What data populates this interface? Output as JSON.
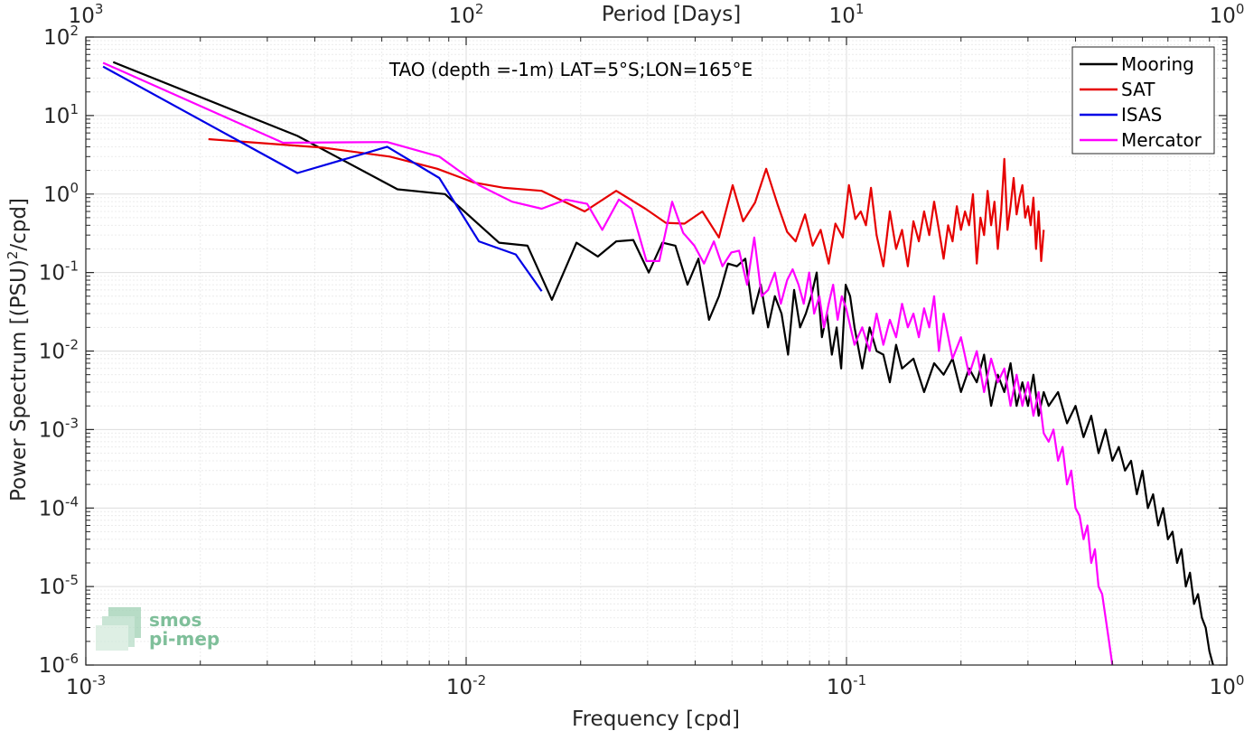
{
  "chart_data": {
    "type": "line",
    "title": "TAO (depth =-1m) LAT=5°S;LON=165°E",
    "xlabel": "Frequency [cpd]",
    "ylabel": "Power Spectrum [(PSU)",
    "ylabel_sup": "2",
    "ylabel_tail": "/cpd]",
    "top_xlabel": "Period [Days]",
    "x_scale": "log",
    "y_scale": "log",
    "xlim": [
      0.001,
      1
    ],
    "ylim": [
      1e-06,
      100
    ],
    "grid": true,
    "legend_position": "top-right",
    "x_ticks": [
      {
        "base": "10",
        "exp": "-3",
        "value": 0.001
      },
      {
        "base": "10",
        "exp": "-2",
        "value": 0.01
      },
      {
        "base": "10",
        "exp": "-1",
        "value": 0.1
      },
      {
        "base": "10",
        "exp": "0",
        "value": 1
      }
    ],
    "y_ticks": [
      {
        "base": "10",
        "exp": "-6",
        "value": 1e-06
      },
      {
        "base": "10",
        "exp": "-5",
        "value": 1e-05
      },
      {
        "base": "10",
        "exp": "-4",
        "value": 0.0001
      },
      {
        "base": "10",
        "exp": "-3",
        "value": 0.001
      },
      {
        "base": "10",
        "exp": "-2",
        "value": 0.01
      },
      {
        "base": "10",
        "exp": "-1",
        "value": 0.1
      },
      {
        "base": "10",
        "exp": "0",
        "value": 1
      },
      {
        "base": "10",
        "exp": "1",
        "value": 10
      },
      {
        "base": "10",
        "exp": "2",
        "value": 100
      }
    ],
    "top_ticks": [
      {
        "base": "10",
        "exp": "3",
        "value": 1000
      },
      {
        "base": "10",
        "exp": "2",
        "value": 100
      },
      {
        "base": "10",
        "exp": "1",
        "value": 10
      },
      {
        "base": "10",
        "exp": "0",
        "value": 1
      }
    ],
    "series": [
      {
        "name": "Mooring",
        "color": "#000000",
        "x": [
          0.00118,
          0.0036,
          0.0066,
          0.0088,
          0.0122,
          0.0145,
          0.0168,
          0.0195,
          0.0222,
          0.0248,
          0.0275,
          0.0302,
          0.0328,
          0.0355,
          0.0382,
          0.0408,
          0.0435,
          0.0462,
          0.0488,
          0.0515,
          0.0542,
          0.0568,
          0.0595,
          0.0622,
          0.0648,
          0.0675,
          0.0702,
          0.0728,
          0.0755,
          0.0782,
          0.0808,
          0.0835,
          0.0862,
          0.0888,
          0.0915,
          0.0942,
          0.0968,
          0.0995,
          0.1022,
          0.105,
          0.11,
          0.115,
          0.12,
          0.125,
          0.13,
          0.135,
          0.14,
          0.15,
          0.16,
          0.17,
          0.18,
          0.19,
          0.2,
          0.21,
          0.22,
          0.23,
          0.24,
          0.25,
          0.26,
          0.27,
          0.28,
          0.29,
          0.3,
          0.31,
          0.32,
          0.33,
          0.34,
          0.36,
          0.38,
          0.4,
          0.42,
          0.44,
          0.46,
          0.48,
          0.5,
          0.52,
          0.54,
          0.56,
          0.58,
          0.6,
          0.62,
          0.64,
          0.66,
          0.68,
          0.7,
          0.72,
          0.74,
          0.76,
          0.78,
          0.8,
          0.82,
          0.84,
          0.86,
          0.88,
          0.9,
          0.92
        ],
        "y": [
          48,
          5.5,
          1.15,
          1.0,
          0.24,
          0.22,
          0.045,
          0.24,
          0.16,
          0.25,
          0.26,
          0.1,
          0.24,
          0.22,
          0.07,
          0.15,
          0.025,
          0.05,
          0.13,
          0.12,
          0.15,
          0.03,
          0.07,
          0.02,
          0.05,
          0.03,
          0.009,
          0.06,
          0.02,
          0.03,
          0.05,
          0.1,
          0.015,
          0.03,
          0.009,
          0.02,
          0.006,
          0.07,
          0.05,
          0.02,
          0.006,
          0.02,
          0.01,
          0.009,
          0.004,
          0.012,
          0.006,
          0.008,
          0.003,
          0.007,
          0.005,
          0.008,
          0.003,
          0.006,
          0.004,
          0.009,
          0.002,
          0.005,
          0.003,
          0.007,
          0.002,
          0.004,
          0.002,
          0.005,
          0.0015,
          0.003,
          0.002,
          0.003,
          0.0012,
          0.002,
          0.0008,
          0.0015,
          0.0005,
          0.001,
          0.0004,
          0.0006,
          0.0003,
          0.0004,
          0.00015,
          0.0003,
          0.0001,
          0.00015,
          6e-05,
          0.0001,
          4e-05,
          5e-05,
          2e-05,
          3e-05,
          1e-05,
          1.5e-05,
          6e-06,
          8e-06,
          4e-06,
          3e-06,
          1.5e-06,
          1e-06
        ]
      },
      {
        "name": "SAT",
        "color": "#e60000",
        "x": [
          0.0021,
          0.0042,
          0.0063,
          0.0084,
          0.0105,
          0.0126,
          0.0158,
          0.0205,
          0.0248,
          0.0296,
          0.0335,
          0.0375,
          0.0418,
          0.0462,
          0.0502,
          0.0535,
          0.0575,
          0.0615,
          0.0658,
          0.0698,
          0.0735,
          0.0778,
          0.0815,
          0.0855,
          0.0898,
          0.0935,
          0.0978,
          0.1015,
          0.1055,
          0.109,
          0.1125,
          0.116,
          0.12,
          0.125,
          0.13,
          0.135,
          0.14,
          0.145,
          0.15,
          0.155,
          0.16,
          0.165,
          0.17,
          0.175,
          0.18,
          0.185,
          0.19,
          0.195,
          0.2,
          0.205,
          0.21,
          0.215,
          0.22,
          0.225,
          0.23,
          0.235,
          0.24,
          0.245,
          0.25,
          0.255,
          0.26,
          0.265,
          0.27,
          0.275,
          0.28,
          0.285,
          0.29,
          0.295,
          0.3,
          0.305,
          0.31,
          0.315,
          0.32,
          0.325,
          0.33
        ],
        "y": [
          5.0,
          3.9,
          3.0,
          2.1,
          1.4,
          1.2,
          1.1,
          0.6,
          1.1,
          0.65,
          0.43,
          0.42,
          0.6,
          0.28,
          1.3,
          0.45,
          0.78,
          2.1,
          0.75,
          0.33,
          0.25,
          0.55,
          0.22,
          0.35,
          0.13,
          0.42,
          0.28,
          1.3,
          0.48,
          0.6,
          0.4,
          1.2,
          0.3,
          0.12,
          0.6,
          0.2,
          0.35,
          0.12,
          0.45,
          0.25,
          0.6,
          0.3,
          0.8,
          0.35,
          0.15,
          0.4,
          0.25,
          0.7,
          0.35,
          0.6,
          0.4,
          1.0,
          0.13,
          0.5,
          0.3,
          1.1,
          0.4,
          0.8,
          0.2,
          0.6,
          2.8,
          0.35,
          0.7,
          1.6,
          0.55,
          0.9,
          1.3,
          0.5,
          0.7,
          0.4,
          0.9,
          0.2,
          0.6,
          0.14,
          0.35
        ]
      },
      {
        "name": "ISAS",
        "color": "#0000e6",
        "x": [
          0.00111,
          0.0036,
          0.0062,
          0.0085,
          0.0108,
          0.0135,
          0.0158
        ],
        "y": [
          42,
          1.85,
          4.0,
          1.6,
          0.25,
          0.17,
          0.058
        ]
      },
      {
        "name": "Mercator",
        "color": "#ff00ff",
        "x": [
          0.00111,
          0.0033,
          0.0062,
          0.0085,
          0.0108,
          0.0132,
          0.0158,
          0.0183,
          0.0208,
          0.0228,
          0.0252,
          0.0272,
          0.0298,
          0.0322,
          0.0348,
          0.0372,
          0.0398,
          0.0422,
          0.0448,
          0.0472,
          0.0498,
          0.0522,
          0.0548,
          0.0572,
          0.0598,
          0.0622,
          0.0648,
          0.0672,
          0.0698,
          0.0722,
          0.0748,
          0.0772,
          0.0798,
          0.0822,
          0.0848,
          0.0872,
          0.0898,
          0.0922,
          0.0948,
          0.0972,
          0.0998,
          0.105,
          0.11,
          0.115,
          0.12,
          0.125,
          0.13,
          0.135,
          0.14,
          0.145,
          0.15,
          0.155,
          0.16,
          0.165,
          0.17,
          0.175,
          0.18,
          0.19,
          0.2,
          0.21,
          0.22,
          0.23,
          0.24,
          0.25,
          0.26,
          0.27,
          0.28,
          0.29,
          0.3,
          0.31,
          0.32,
          0.33,
          0.34,
          0.35,
          0.36,
          0.37,
          0.38,
          0.39,
          0.4,
          0.41,
          0.42,
          0.43,
          0.44,
          0.45,
          0.46,
          0.47,
          0.48,
          0.49,
          0.5
        ],
        "y": [
          47,
          4.5,
          4.6,
          3.0,
          1.3,
          0.8,
          0.65,
          0.85,
          0.75,
          0.35,
          0.85,
          0.65,
          0.14,
          0.14,
          0.8,
          0.32,
          0.22,
          0.13,
          0.25,
          0.12,
          0.18,
          0.19,
          0.07,
          0.28,
          0.05,
          0.06,
          0.1,
          0.04,
          0.08,
          0.11,
          0.07,
          0.04,
          0.1,
          0.03,
          0.05,
          0.02,
          0.04,
          0.07,
          0.025,
          0.05,
          0.035,
          0.012,
          0.02,
          0.01,
          0.03,
          0.012,
          0.025,
          0.015,
          0.04,
          0.02,
          0.03,
          0.015,
          0.035,
          0.02,
          0.05,
          0.01,
          0.03,
          0.008,
          0.015,
          0.005,
          0.01,
          0.003,
          0.008,
          0.004,
          0.006,
          0.002,
          0.005,
          0.002,
          0.004,
          0.0015,
          0.003,
          0.0009,
          0.0007,
          0.001,
          0.0004,
          0.0006,
          0.0002,
          0.0003,
          0.0001,
          8e-05,
          4e-05,
          6e-05,
          2e-05,
          3e-05,
          1e-05,
          8e-06,
          4e-06,
          2e-06,
          1e-06
        ]
      }
    ]
  },
  "logo": {
    "line1": "smos",
    "line2": "pi-mep"
  },
  "colors": {
    "grid_major": "#dcdcdc",
    "grid_minor": "#ececec",
    "axis": "#262626",
    "logo": "#7fbf9a"
  }
}
